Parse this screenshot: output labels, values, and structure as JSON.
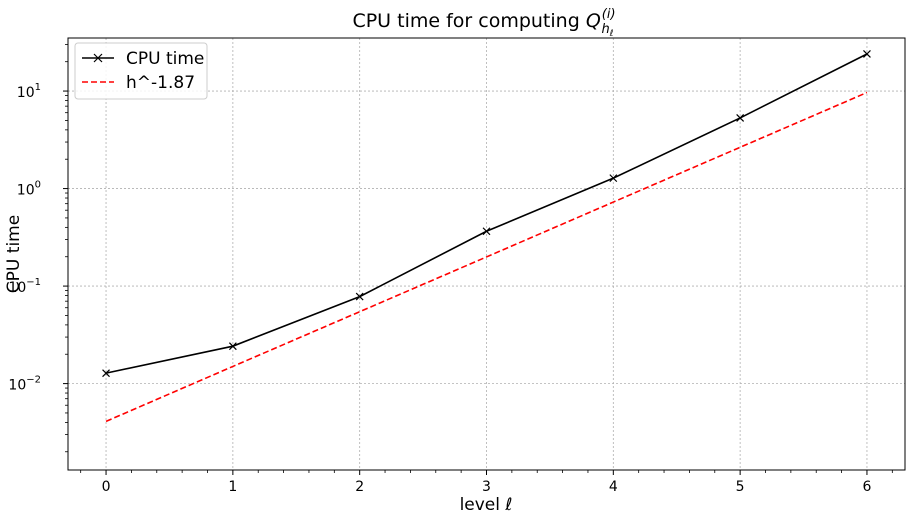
{
  "chart_data": {
    "type": "line",
    "title": {
      "prefix": "CPU time for computing ",
      "symbol": "Q",
      "superscript": "(i)",
      "subscript": "h",
      "sub_subscript": "ℓ"
    },
    "xlabel": "level ℓ",
    "ylabel": "CPU time",
    "x": [
      0,
      1,
      2,
      3,
      4,
      5,
      6
    ],
    "xticks": [
      "0",
      "1",
      "2",
      "3",
      "4",
      "5",
      "6"
    ],
    "xlim": [
      -0.3,
      6.3
    ],
    "yscale": "log",
    "ylim": [
      0.0013,
      35
    ],
    "yticks": [
      {
        "value": 0.01,
        "base": "10",
        "exp": "−2"
      },
      {
        "value": 0.1,
        "base": "10",
        "exp": "−1"
      },
      {
        "value": 1,
        "base": "10",
        "exp": "0"
      },
      {
        "value": 10,
        "base": "10",
        "exp": "1"
      }
    ],
    "grid": true,
    "legend_position": "top-left",
    "series": [
      {
        "name": "CPU time",
        "color": "#000000",
        "style": "solid",
        "marker": "x",
        "values": [
          0.0128,
          0.0242,
          0.078,
          0.365,
          1.28,
          5.3,
          24.0
        ]
      },
      {
        "name": "h^-1.87",
        "color": "#ff0000",
        "style": "dashed",
        "marker": "none",
        "values": [
          0.0041,
          0.015,
          0.0546,
          0.199,
          0.727,
          2.65,
          9.66
        ]
      }
    ]
  }
}
